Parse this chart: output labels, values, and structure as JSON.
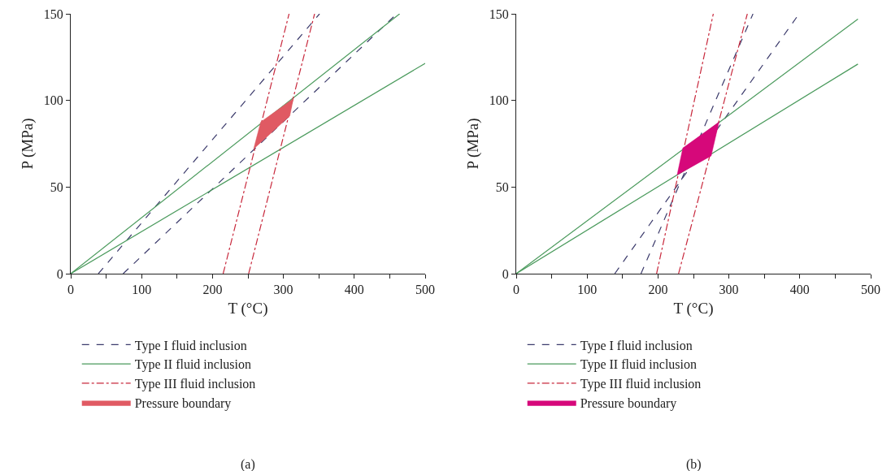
{
  "chart_data": [
    {
      "type": "line",
      "xlabel": "T (°C)",
      "ylabel": "P (MPa)",
      "xlim": [
        0,
        500
      ],
      "ylim": [
        0,
        150
      ],
      "xticks": [
        0,
        {
          "value": 50,
          "label": null
        },
        100,
        {
          "value": 150,
          "label": null
        },
        200,
        {
          "value": 250,
          "label": null
        },
        300,
        {
          "value": 350,
          "label": null
        },
        400,
        {
          "value": 450,
          "label": null
        },
        500
      ],
      "yticks": [
        0,
        50,
        100,
        150
      ],
      "grid": false,
      "legend": "bottom",
      "marker": "none",
      "series": [
        {
          "name": "Type I fluid inclusion",
          "color": "#3b3a6b",
          "line_style": "dashed",
          "x": [
            39,
            351
          ],
          "values": [
            0,
            150
          ]
        },
        {
          "color": "#3b3a6b",
          "line_style": "dashed",
          "x": [
            74,
            460
          ],
          "values": [
            0,
            150
          ]
        },
        {
          "name": "Type II fluid inclusion",
          "color": "#4a9a5c",
          "line_style": "solid",
          "x": [
            0,
            464
          ],
          "values": [
            0,
            150
          ]
        },
        {
          "color": "#4a9a5c",
          "line_style": "solid",
          "x": [
            0,
            500
          ],
          "values": [
            0,
            121.4
          ]
        },
        {
          "name": "Type III fluid inclusion",
          "color": "#c8283c",
          "line_style": "dashdot",
          "x": [
            215,
            308
          ],
          "values": [
            0,
            150
          ]
        },
        {
          "color": "#c8283c",
          "line_style": "dashdot",
          "x": [
            251,
            344
          ],
          "values": [
            0,
            150
          ]
        },
        {
          "name": "Pressure boundary",
          "type": "area",
          "color": "#e05a63",
          "x": [
            258,
            268,
            314,
            309,
            258
          ],
          "values": [
            72,
            87.5,
            101,
            91,
            72
          ]
        }
      ],
      "annotations": [
        "(a)"
      ]
    },
    {
      "type": "line",
      "xlabel": "T (°C)",
      "ylabel": "P (MPa)",
      "xlim": [
        0,
        500
      ],
      "ylim": [
        0,
        150
      ],
      "xticks": [
        0,
        {
          "value": 50,
          "label": null
        },
        100,
        {
          "value": 150,
          "label": null
        },
        200,
        {
          "value": 250,
          "label": null
        },
        300,
        {
          "value": 350,
          "label": null
        },
        400,
        {
          "value": 450,
          "label": null
        },
        500
      ],
      "yticks": [
        0,
        50,
        100,
        150
      ],
      "grid": false,
      "legend": "bottom",
      "marker": "none",
      "series": [
        {
          "name": "Type I fluid inclusion",
          "color": "#3b3a6b",
          "line_style": "dashed",
          "x": [
            139,
            399
          ],
          "values": [
            0,
            150
          ]
        },
        {
          "color": "#3b3a6b",
          "line_style": "dashed",
          "x": [
            176,
            334
          ],
          "values": [
            0,
            150
          ]
        },
        {
          "name": "Type II fluid inclusion",
          "color": "#4a9a5c",
          "line_style": "solid",
          "x": [
            0,
            482
          ],
          "values": [
            0,
            147
          ]
        },
        {
          "color": "#4a9a5c",
          "line_style": "solid",
          "x": [
            0,
            482
          ],
          "values": [
            0,
            121
          ]
        },
        {
          "name": "Type III fluid inclusion",
          "color": "#c8283c",
          "line_style": "dashdot",
          "x": [
            198,
            278
          ],
          "values": [
            0,
            150
          ]
        },
        {
          "color": "#c8283c",
          "line_style": "dashdot",
          "x": [
            229,
            326
          ],
          "values": [
            0,
            150
          ]
        },
        {
          "name": "Pressure boundary",
          "type": "area",
          "color": "#d6087a",
          "x": [
            227,
            235,
            286,
            275,
            227
          ],
          "values": [
            57,
            72.5,
            87.5,
            68,
            57
          ]
        }
      ],
      "annotations": [
        "(b)"
      ]
    }
  ]
}
